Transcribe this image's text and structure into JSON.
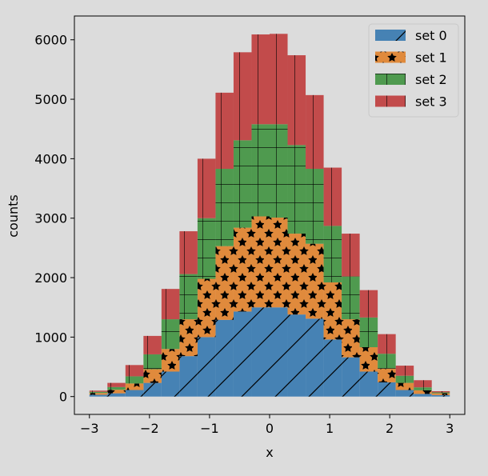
{
  "chart_data": {
    "type": "bar",
    "stacked": true,
    "xlabel": "x",
    "ylabel": "counts",
    "xlim": [
      -3.25,
      3.25
    ],
    "ylim": [
      -300,
      6400
    ],
    "xticks": [
      "−3",
      "−2",
      "−1",
      "0",
      "1",
      "2",
      "3"
    ],
    "yticks": [
      "0",
      "1000",
      "2000",
      "3000",
      "4000",
      "5000",
      "6000"
    ],
    "grid": false,
    "legend_position": "top-right",
    "bin_edges": [
      -3,
      -2.7,
      -2.4,
      -2.1,
      -1.8,
      -1.5,
      -1.2,
      -0.9,
      -0.6,
      -0.3,
      0,
      0.3,
      0.6,
      0.9,
      1.2,
      1.5,
      1.8,
      2.1,
      2.4,
      2.7,
      3
    ],
    "series": [
      {
        "name": "set 0",
        "color": "#4682b4",
        "hatch": "diagonal",
        "values": [
          30,
          55,
          110,
          230,
          420,
          680,
          1000,
          1290,
          1430,
          1500,
          1500,
          1380,
          1310,
          960,
          660,
          420,
          240,
          110,
          45,
          25
        ]
      },
      {
        "name": "set 1",
        "color": "#e08a3c",
        "hatch": "stars",
        "values": [
          30,
          60,
          110,
          230,
          380,
          620,
          980,
          1240,
          1410,
          1530,
          1510,
          1360,
          1260,
          960,
          640,
          410,
          230,
          120,
          60,
          30
        ]
      },
      {
        "name": "set 2",
        "color": "#4f9a4f",
        "hatch": "grid",
        "values": [
          20,
          45,
          120,
          250,
          500,
          760,
          1020,
          1300,
          1470,
          1550,
          1570,
          1490,
          1260,
          950,
          720,
          500,
          250,
          120,
          50,
          15
        ]
      },
      {
        "name": "set 3",
        "color": "#c24b4b",
        "hatch": "vertical",
        "values": [
          20,
          70,
          190,
          310,
          510,
          720,
          1000,
          1280,
          1480,
          1510,
          1520,
          1510,
          1240,
          980,
          720,
          460,
          330,
          170,
          120,
          20
        ]
      }
    ]
  }
}
